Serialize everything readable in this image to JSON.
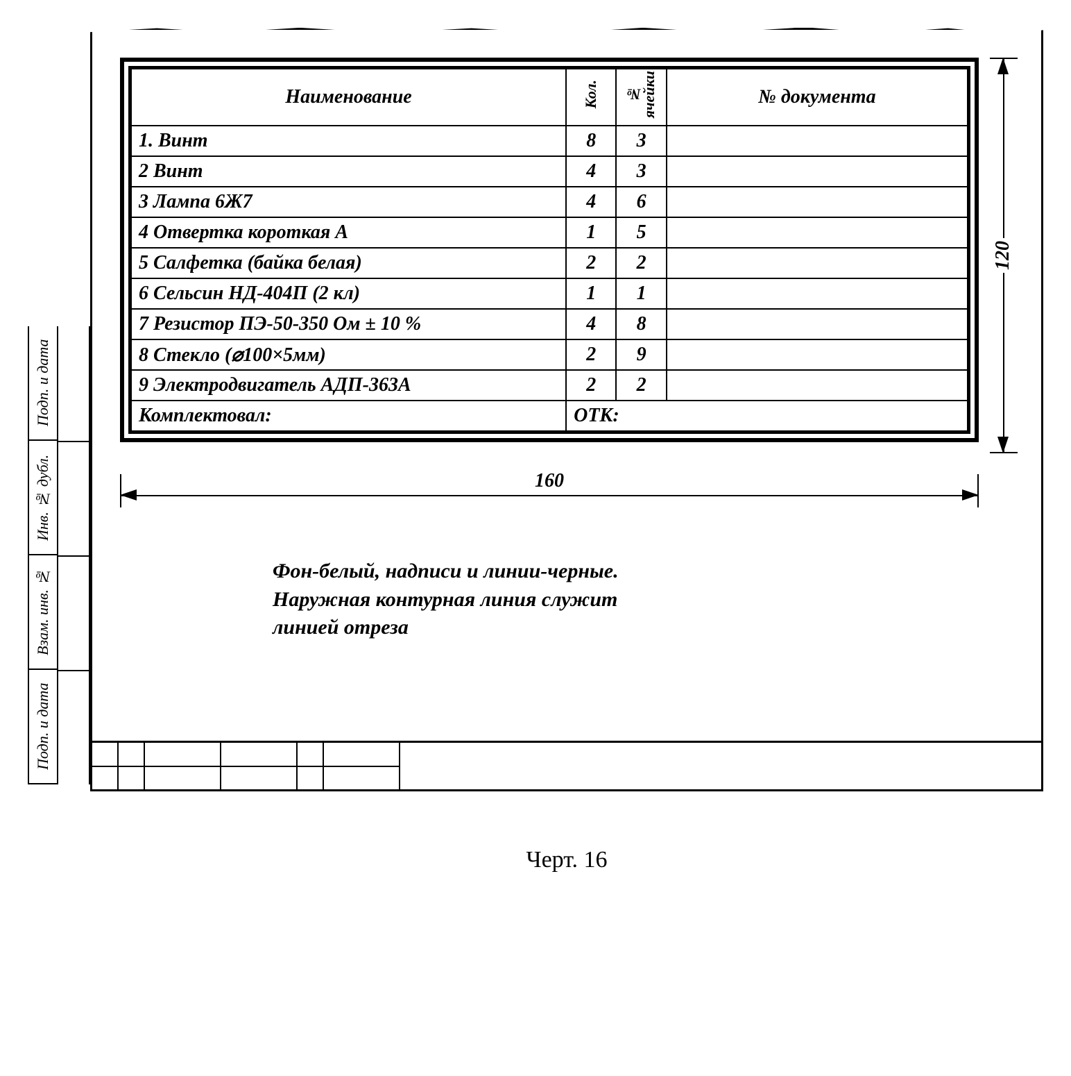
{
  "table": {
    "headers": {
      "name": "Наименование",
      "kol": "Кол.",
      "yach": "№ ячейки",
      "doc": "№ документа"
    },
    "rows": [
      {
        "name": "1. Винт",
        "kol": "8",
        "yach": "3",
        "doc": ""
      },
      {
        "name": "2 Винт",
        "kol": "4",
        "yach": "3",
        "doc": ""
      },
      {
        "name": "3 Лампа 6Ж7",
        "kol": "4",
        "yach": "6",
        "doc": ""
      },
      {
        "name": "4 Отвертка короткая А",
        "kol": "1",
        "yach": "5",
        "doc": ""
      },
      {
        "name": "5 Салфетка (байка белая)",
        "kol": "2",
        "yach": "2",
        "doc": ""
      },
      {
        "name": "6 Сельсин НД-404П (2 кл)",
        "kol": "1",
        "yach": "1",
        "doc": ""
      },
      {
        "name": "7 Резистор ПЭ-50-350 Ом ± 10 %",
        "kol": "4",
        "yach": "8",
        "doc": ""
      },
      {
        "name": "8 Стекло (⌀100×5мм)",
        "kol": "2",
        "yach": "9",
        "doc": ""
      },
      {
        "name": "9 Электродвигатель АДП-363А",
        "kol": "2",
        "yach": "2",
        "doc": ""
      }
    ],
    "footer": {
      "left": "Комплектовал:",
      "right": "ОТК:"
    }
  },
  "dimensions": {
    "width": "160",
    "height": "120"
  },
  "note": {
    "line1": "Фон-белый, надписи и линии-черные.",
    "line2": "Наружная контурная линия служит",
    "line3": "линией отреза"
  },
  "side": {
    "l1": "Подп. и дата",
    "l2": "Инв. № дубл.",
    "l3": "Взам. инв. №",
    "l4": "Подп. и дата"
  },
  "caption": "Черт. 16",
  "colors": {
    "fg": "#000000",
    "bg": "#ffffff"
  }
}
